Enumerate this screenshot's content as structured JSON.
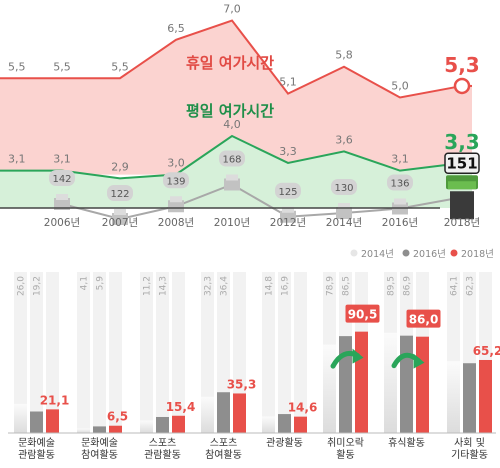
{
  "chart_data": [
    {
      "type": "line",
      "categories": [
        "2006년",
        "2007년",
        "2008년",
        "2010년",
        "2012년",
        "2014년",
        "2016년",
        "2018년"
      ],
      "series": [
        {
          "name": "휴일 여가시간",
          "values": [
            5.5,
            5.5,
            6.5,
            7.0,
            5.1,
            5.8,
            5.0,
            5.3
          ],
          "labels": [
            "5,5",
            "5,5",
            "6,5",
            "7,0",
            "5,1",
            "5,8",
            "5,0",
            "5,3"
          ],
          "color": "#e8504a",
          "fill": "#fbd3d0"
        },
        {
          "name": "평일 여가시간",
          "values": [
            3.1,
            2.9,
            3.0,
            4.0,
            3.3,
            3.6,
            3.1,
            3.3
          ],
          "labels": [
            "3,1",
            "2,9",
            "3,0",
            "4,0",
            "3,3",
            "3,6",
            "3,1",
            "3,3"
          ],
          "color": "#2aa55a",
          "fill": "#d6f0d9"
        }
      ],
      "spending": {
        "values": [
          142,
          122,
          139,
          168,
          125,
          130,
          136,
          151
        ],
        "labels": [
          "142",
          "122",
          "139",
          "168",
          "125",
          "130",
          "136",
          "151"
        ],
        "color": "#9c9c9c",
        "highlight_color": "#4f9a3c"
      }
    },
    {
      "type": "bar",
      "categories": [
        "문화예술\n관람활동",
        "문화예술\n참여활동",
        "스포츠\n관람활동",
        "스포츠\n참여활동",
        "관광활동",
        "취미오락\n활동",
        "휴식활동",
        "사회 및\n기타활동"
      ],
      "series": [
        {
          "name": "2014년",
          "values": [
            26.0,
            4.1,
            11.2,
            32.3,
            14.8,
            78.9,
            89.5,
            64.1
          ],
          "labels": [
            "26,0",
            "4,1",
            "11,2",
            "32,3",
            "14,8",
            "78,9",
            "89,5",
            "64,1"
          ],
          "color": "#e6e6e6"
        },
        {
          "name": "2016년",
          "values": [
            19.2,
            5.9,
            14.3,
            36.4,
            16.9,
            86.5,
            86.9,
            62.3
          ],
          "labels": [
            "19,2",
            "5,9",
            "14,3",
            "36,4",
            "16,9",
            "86,5",
            "86,9",
            "62,3"
          ],
          "color": "#8e8e8e"
        },
        {
          "name": "2018년",
          "values": [
            21.1,
            6.5,
            15.4,
            35.3,
            14.6,
            90.5,
            86.0,
            65.2
          ],
          "labels": [
            "21,1",
            "6,5",
            "15,4",
            "35,3",
            "14,6",
            "90,5",
            "86,0",
            "65,2"
          ],
          "color": "#e8504a"
        }
      ],
      "legend_position": "top-right",
      "highlight_arrows": [
        "취미오락\n활동",
        "휴식활동"
      ],
      "accent_color": "#2aa55a"
    }
  ]
}
